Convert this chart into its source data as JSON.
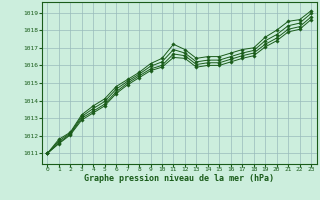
{
  "title": "Graphe pression niveau de la mer (hPa)",
  "background_color": "#cceedd",
  "plot_bg_color": "#cceedd",
  "grid_color": "#99bbbb",
  "line_color": "#1a5c1a",
  "marker_color": "#1a5c1a",
  "x_ticks": [
    0,
    1,
    2,
    3,
    4,
    5,
    6,
    7,
    8,
    9,
    10,
    11,
    12,
    13,
    14,
    15,
    16,
    17,
    18,
    19,
    20,
    21,
    22,
    23
  ],
  "y_ticks": [
    1011,
    1012,
    1013,
    1014,
    1015,
    1016,
    1017,
    1018,
    1019
  ],
  "ylim": [
    1010.4,
    1019.6
  ],
  "xlim": [
    -0.5,
    23.5
  ],
  "series": [
    [
      1011.0,
      1011.8,
      1012.2,
      1013.2,
      1013.7,
      1014.1,
      1014.8,
      1015.2,
      1015.6,
      1016.1,
      1016.4,
      1017.2,
      1016.9,
      1016.4,
      1016.5,
      1016.5,
      1016.7,
      1016.9,
      1017.0,
      1017.6,
      1018.0,
      1018.5,
      1018.6,
      1019.1
    ],
    [
      1011.0,
      1011.7,
      1012.15,
      1013.1,
      1013.55,
      1013.95,
      1014.65,
      1015.1,
      1015.5,
      1015.95,
      1016.2,
      1016.9,
      1016.7,
      1016.2,
      1016.3,
      1016.3,
      1016.5,
      1016.7,
      1016.85,
      1017.4,
      1017.75,
      1018.25,
      1018.4,
      1018.95
    ],
    [
      1011.0,
      1011.6,
      1012.1,
      1013.0,
      1013.4,
      1013.8,
      1014.5,
      1015.0,
      1015.4,
      1015.8,
      1016.0,
      1016.65,
      1016.55,
      1016.05,
      1016.15,
      1016.15,
      1016.35,
      1016.55,
      1016.7,
      1017.2,
      1017.55,
      1018.05,
      1018.2,
      1018.75
    ],
    [
      1011.0,
      1011.55,
      1012.05,
      1012.9,
      1013.3,
      1013.7,
      1014.4,
      1014.9,
      1015.3,
      1015.7,
      1015.9,
      1016.45,
      1016.4,
      1015.9,
      1016.0,
      1016.0,
      1016.2,
      1016.4,
      1016.55,
      1017.05,
      1017.4,
      1017.9,
      1018.05,
      1018.6
    ]
  ]
}
